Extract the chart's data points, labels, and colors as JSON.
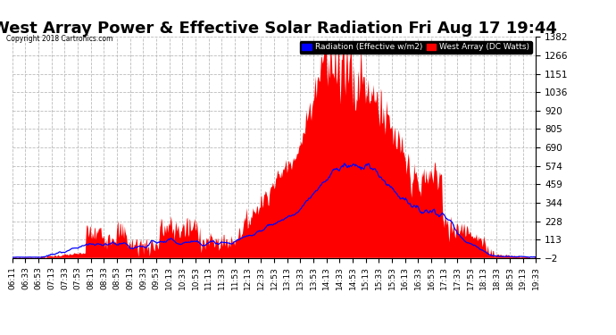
{
  "title": "West Array Power & Effective Solar Radiation Fri Aug 17 19:44",
  "copyright": "Copyright 2018 Cartronics.com",
  "legend_radiation": "Radiation (Effective w/m2)",
  "legend_west": "West Array (DC Watts)",
  "ymin": -2.5,
  "ymax": 1381.6,
  "yticks": [
    -2.5,
    112.8,
    228.1,
    343.5,
    458.8,
    574.2,
    689.5,
    804.8,
    920.2,
    1035.5,
    1150.9,
    1266.2,
    1381.6
  ],
  "bg_color": "#ffffff",
  "plot_bg_color": "#ffffff",
  "grid_color": "#bbbbbb",
  "radiation_color": "#0000ff",
  "west_color": "#ff0000",
  "title_fontsize": 13,
  "xlabel_fontsize": 6.5,
  "ylabel_fontsize": 7.5,
  "time_labels": [
    "06:11",
    "06:33",
    "06:53",
    "07:13",
    "07:33",
    "07:53",
    "08:13",
    "08:33",
    "08:53",
    "09:13",
    "09:33",
    "09:53",
    "10:13",
    "10:33",
    "10:53",
    "11:13",
    "11:33",
    "11:53",
    "12:13",
    "12:33",
    "12:53",
    "13:13",
    "13:33",
    "13:53",
    "14:13",
    "14:33",
    "14:53",
    "15:13",
    "15:33",
    "15:53",
    "16:13",
    "16:33",
    "16:53",
    "17:13",
    "17:33",
    "17:53",
    "18:13",
    "18:33",
    "18:53",
    "19:13",
    "19:33"
  ]
}
